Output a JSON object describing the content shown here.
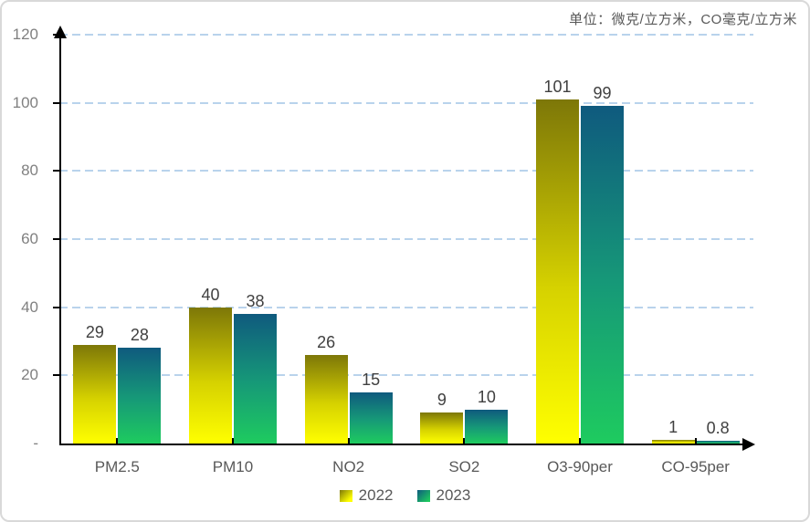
{
  "unit_label": "单位：微克/立方米，CO毫克/立方米",
  "chart_data": {
    "type": "bar",
    "title": "",
    "xlabel": "",
    "ylabel": "",
    "categories": [
      "PM2.5",
      "PM10",
      "NO2",
      "SO2",
      "O3-90per",
      "CO-95per"
    ],
    "series": [
      {
        "name": "2022",
        "values": [
          29,
          40,
          26,
          9,
          101,
          1
        ]
      },
      {
        "name": "2023",
        "values": [
          28,
          38,
          15,
          10,
          99,
          0.8
        ]
      }
    ],
    "data_labels": [
      [
        "29",
        "40",
        "26",
        "9",
        "101",
        "1"
      ],
      [
        "28",
        "38",
        "15",
        "10",
        "99",
        "0.8"
      ]
    ],
    "ylim": [
      0,
      120
    ],
    "ytick_interval": 20,
    "ytick_labels": [
      "-",
      "20",
      "40",
      "60",
      "80",
      "100",
      "120"
    ],
    "grid": "dashed-horizontal",
    "legend_position": "bottom",
    "colors": {
      "gridline": "#B9D3EC",
      "axis": "#000000",
      "ytick_label": "#808080",
      "data_label": "#404040",
      "category_label": "#595959",
      "gradient_2022": [
        "#7d7708",
        "#d6d200",
        "#ffff00"
      ],
      "gradient_2023": [
        "#0f5a7e",
        "#169878",
        "#1ecb5f"
      ]
    }
  },
  "legend": {
    "items": [
      {
        "label": "2022"
      },
      {
        "label": "2023"
      }
    ]
  }
}
